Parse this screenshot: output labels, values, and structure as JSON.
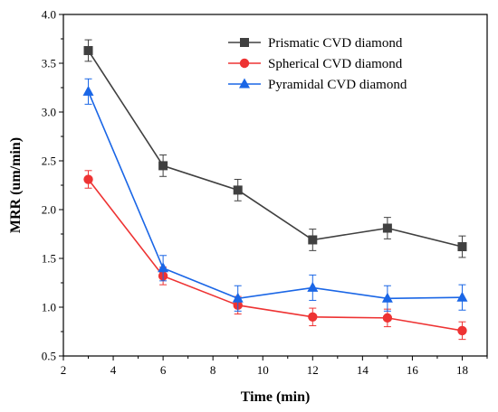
{
  "chart_data": {
    "type": "line",
    "title": "",
    "xlabel": "Time (min)",
    "ylabel": "MRR (um/min)",
    "xlim": [
      2,
      19
    ],
    "ylim": [
      0.5,
      4.0
    ],
    "x_ticks": [
      2,
      4,
      6,
      8,
      10,
      12,
      14,
      16,
      18
    ],
    "y_ticks": [
      0.5,
      1.0,
      1.5,
      2.0,
      2.5,
      3.0,
      3.5,
      4.0
    ],
    "x_tick_labels": [
      "2",
      "4",
      "6",
      "8",
      "10",
      "12",
      "14",
      "16",
      "18"
    ],
    "y_tick_labels": [
      "0.5",
      "1.0",
      "1.5",
      "2.0",
      "2.5",
      "3.0",
      "3.5",
      "4.0"
    ],
    "grid": false,
    "legend_position": "top-right",
    "x": [
      3,
      6,
      9,
      12,
      15,
      18
    ],
    "series": [
      {
        "name": "Prismatic CVD diamond",
        "color": "#404040",
        "marker": "square",
        "values": [
          3.63,
          2.45,
          2.2,
          1.69,
          1.81,
          1.62
        ],
        "errors": [
          0.11,
          0.11,
          0.11,
          0.11,
          0.11,
          0.11
        ]
      },
      {
        "name": "Spherical CVD diamond",
        "color": "#ee3333",
        "marker": "circle",
        "values": [
          2.31,
          1.32,
          1.02,
          0.9,
          0.89,
          0.76
        ],
        "errors": [
          0.09,
          0.09,
          0.09,
          0.09,
          0.09,
          0.09
        ]
      },
      {
        "name": "Pyramidal CVD diamond",
        "color": "#1a66e6",
        "marker": "triangle",
        "values": [
          3.21,
          1.4,
          1.09,
          1.2,
          1.09,
          1.1
        ],
        "errors": [
          0.13,
          0.13,
          0.13,
          0.13,
          0.13,
          0.13
        ]
      }
    ]
  }
}
